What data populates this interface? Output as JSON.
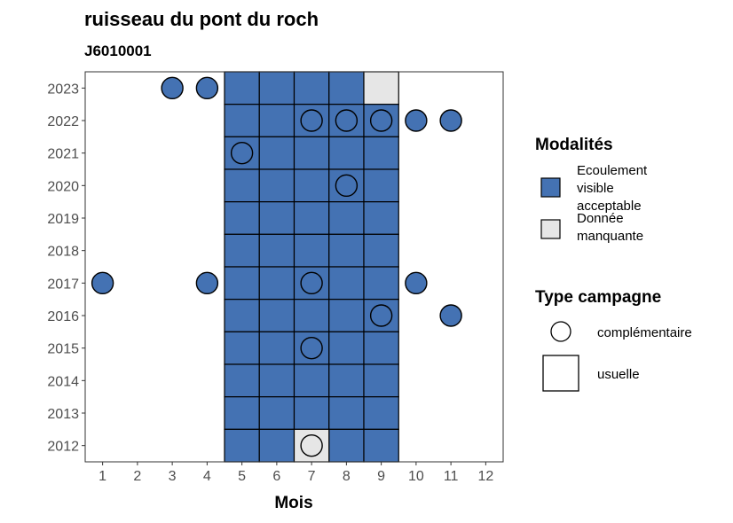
{
  "chart_data": {
    "type": "heatmap",
    "title": "ruisseau du pont du roch",
    "subtitle": "J6010001",
    "xlabel": "Mois",
    "ylabel": "",
    "x_categories": [
      1,
      2,
      3,
      4,
      5,
      6,
      7,
      8,
      9,
      10,
      11,
      12
    ],
    "y_categories": [
      2012,
      2013,
      2014,
      2015,
      2016,
      2017,
      2018,
      2019,
      2020,
      2021,
      2022,
      2023
    ],
    "colors": {
      "ecoulement": "#4472b3",
      "manquante": "#e6e6e6",
      "outline": "#000000"
    },
    "legend_modalites": {
      "title": "Modalités",
      "items": [
        {
          "key": "ecoulement",
          "lines": [
            "Ecoulement",
            "visible",
            "acceptable"
          ],
          "color": "#4472b3"
        },
        {
          "key": "manquante",
          "lines": [
            "Donnée",
            "manquante"
          ],
          "color": "#e6e6e6"
        }
      ]
    },
    "legend_type": {
      "title": "Type campagne",
      "items": [
        {
          "shape": "circle",
          "label": "complémentaire"
        },
        {
          "shape": "square",
          "label": "usuelle"
        }
      ]
    },
    "usuelle": [
      {
        "year": 2023,
        "months": [
          5,
          6,
          7,
          8
        ],
        "missing": [
          9
        ]
      },
      {
        "year": 2022,
        "months": [
          5,
          6,
          7,
          8,
          9
        ],
        "missing": []
      },
      {
        "year": 2021,
        "months": [
          5,
          6,
          7,
          8,
          9
        ],
        "missing": []
      },
      {
        "year": 2020,
        "months": [
          5,
          6,
          7,
          8,
          9
        ],
        "missing": []
      },
      {
        "year": 2019,
        "months": [
          5,
          6,
          7,
          8,
          9
        ],
        "missing": []
      },
      {
        "year": 2018,
        "months": [
          5,
          6,
          7,
          8,
          9
        ],
        "missing": []
      },
      {
        "year": 2017,
        "months": [
          5,
          6,
          7,
          8,
          9
        ],
        "missing": []
      },
      {
        "year": 2016,
        "months": [
          5,
          6,
          7,
          8,
          9
        ],
        "missing": []
      },
      {
        "year": 2015,
        "months": [
          5,
          6,
          7,
          8,
          9
        ],
        "missing": []
      },
      {
        "year": 2014,
        "months": [
          5,
          6,
          7,
          8,
          9
        ],
        "missing": []
      },
      {
        "year": 2013,
        "months": [
          5,
          6,
          7,
          8,
          9
        ],
        "missing": []
      },
      {
        "year": 2012,
        "months": [
          5,
          6,
          8,
          9
        ],
        "missing": [
          7
        ]
      }
    ],
    "complementaire": [
      {
        "year": 2023,
        "month": 3,
        "modalite": "ecoulement"
      },
      {
        "year": 2023,
        "month": 4,
        "modalite": "ecoulement"
      },
      {
        "year": 2022,
        "month": 7,
        "modalite": "ecoulement"
      },
      {
        "year": 2022,
        "month": 8,
        "modalite": "ecoulement"
      },
      {
        "year": 2022,
        "month": 9,
        "modalite": "ecoulement"
      },
      {
        "year": 2022,
        "month": 10,
        "modalite": "ecoulement"
      },
      {
        "year": 2022,
        "month": 11,
        "modalite": "ecoulement"
      },
      {
        "year": 2021,
        "month": 5,
        "modalite": "ecoulement"
      },
      {
        "year": 2020,
        "month": 8,
        "modalite": "ecoulement"
      },
      {
        "year": 2017,
        "month": 1,
        "modalite": "ecoulement"
      },
      {
        "year": 2017,
        "month": 4,
        "modalite": "ecoulement"
      },
      {
        "year": 2017,
        "month": 7,
        "modalite": "ecoulement"
      },
      {
        "year": 2017,
        "month": 10,
        "modalite": "ecoulement"
      },
      {
        "year": 2016,
        "month": 9,
        "modalite": "ecoulement"
      },
      {
        "year": 2016,
        "month": 11,
        "modalite": "ecoulement"
      },
      {
        "year": 2015,
        "month": 7,
        "modalite": "ecoulement"
      },
      {
        "year": 2012,
        "month": 7,
        "modalite": "manquante"
      }
    ]
  }
}
